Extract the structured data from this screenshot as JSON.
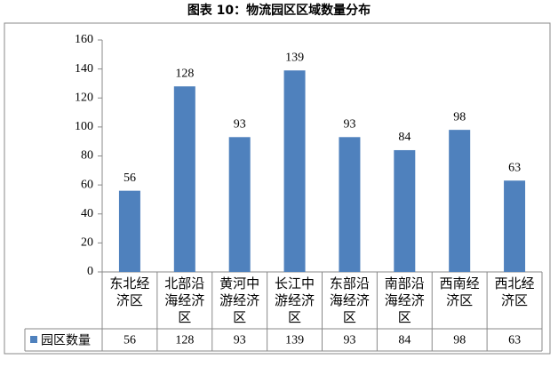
{
  "chart_data": {
    "type": "bar",
    "title": "图表 10：物流园区区域数量分布",
    "categories": [
      "东北经济区",
      "北部沿海经济区",
      "黄河中游经济区",
      "长江中游经济区",
      "东部沿海经济区",
      "南部沿海经济区",
      "西南经济区",
      "西北经济区"
    ],
    "series": [
      {
        "name": "园区数量",
        "color": "#4f81bd",
        "values": [
          56,
          128,
          93,
          139,
          93,
          84,
          98,
          63
        ]
      }
    ],
    "ylim": [
      0,
      160
    ],
    "yticks": [
      0,
      20,
      40,
      60,
      80,
      100,
      120,
      140,
      160
    ],
    "grid": false,
    "data_table": true
  }
}
